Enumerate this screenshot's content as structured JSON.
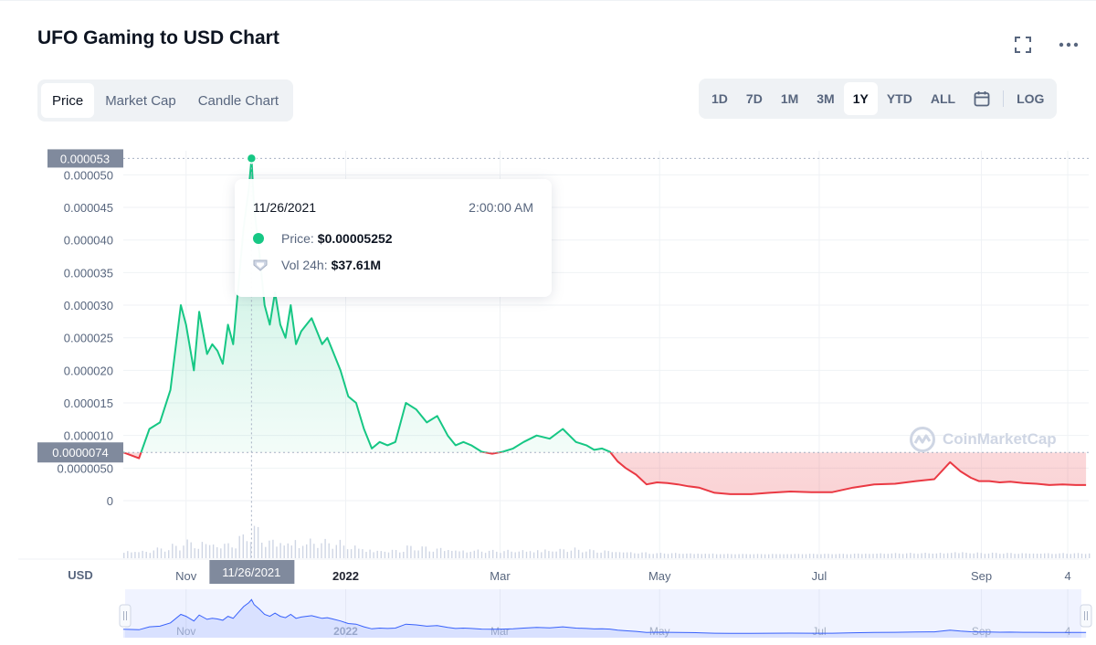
{
  "header": {
    "title": "UFO Gaming to USD Chart"
  },
  "tabs": [
    {
      "label": "Price",
      "active": true
    },
    {
      "label": "Market Cap",
      "active": false
    },
    {
      "label": "Candle Chart",
      "active": false
    }
  ],
  "ranges": [
    {
      "label": "1D",
      "active": false
    },
    {
      "label": "7D",
      "active": false
    },
    {
      "label": "1M",
      "active": false
    },
    {
      "label": "3M",
      "active": false
    },
    {
      "label": "1Y",
      "active": true
    },
    {
      "label": "YTD",
      "active": false
    },
    {
      "label": "ALL",
      "active": false
    }
  ],
  "log_label": "LOG",
  "icons": {
    "fullscreen": "fullscreen-icon",
    "more": "more-icon",
    "calendar": "calendar-icon"
  },
  "colors": {
    "up": "#16c784",
    "down": "#ea3943",
    "volume": "#cfd6e4",
    "navigator_line": "#3861fb"
  },
  "tooltip": {
    "date": "11/26/2021",
    "time": "2:00:00 AM",
    "price_label": "Price:",
    "price_value": "$0.00005252",
    "volume_label": "Vol 24h:",
    "volume_value": "$37.61M"
  },
  "watermark": "CoinMarketCap",
  "chart_data": {
    "type": "line",
    "currency_label": "USD",
    "y_tick_labels": [
      "0",
      "0.0000050",
      "0.000010",
      "0.000015",
      "0.000020",
      "0.000025",
      "0.000030",
      "0.000035",
      "0.000040",
      "0.000045",
      "0.000050"
    ],
    "y_ticks": [
      0,
      5e-06,
      1e-05,
      1.5e-05,
      2e-05,
      2.5e-05,
      3e-05,
      3.5e-05,
      4e-05,
      4.5e-05,
      5e-05
    ],
    "ylim": [
      0,
      5.3e-05
    ],
    "x_tick_labels": [
      "Nov",
      "2022",
      "Mar",
      "May",
      "Jul",
      "Sep",
      "4"
    ],
    "x_tick_dates": [
      "2021-11-01",
      "2022-01-01",
      "2022-03-01",
      "2022-05-01",
      "2022-07-01",
      "2022-09-01",
      "2022-10-04"
    ],
    "xlim": [
      "2021-10-08",
      "2022-10-12"
    ],
    "hover": {
      "date": "2021-11-26",
      "date_label": "11/26/2021",
      "price": 5.252e-05,
      "price_label": "0.000053"
    },
    "baseline": {
      "value": 7.4e-06,
      "label": "0.0000074"
    },
    "grid": true,
    "series": [
      {
        "x": [
          "2021-10-08",
          "2021-10-14",
          "2021-10-18",
          "2021-10-22",
          "2021-10-26",
          "2021-10-30",
          "2021-11-01",
          "2021-11-04",
          "2021-11-06",
          "2021-11-09",
          "2021-11-11",
          "2021-11-13",
          "2021-11-15",
          "2021-11-17",
          "2021-11-19",
          "2021-11-21",
          "2021-11-23",
          "2021-11-25",
          "2021-11-26",
          "2021-11-27",
          "2021-11-29",
          "2021-12-01",
          "2021-12-03",
          "2021-12-05",
          "2021-12-07",
          "2021-12-09",
          "2021-12-11",
          "2021-12-13",
          "2021-12-15",
          "2021-12-17",
          "2021-12-19",
          "2021-12-21",
          "2021-12-23",
          "2021-12-25",
          "2021-12-27",
          "2021-12-30",
          "2022-01-02",
          "2022-01-05",
          "2022-01-08",
          "2022-01-11",
          "2022-01-14",
          "2022-01-17",
          "2022-01-20",
          "2022-01-24",
          "2022-01-28",
          "2022-02-01",
          "2022-02-05",
          "2022-02-09",
          "2022-02-12",
          "2022-02-15",
          "2022-02-18",
          "2022-02-22",
          "2022-02-26",
          "2022-03-02",
          "2022-03-06",
          "2022-03-10",
          "2022-03-15",
          "2022-03-20",
          "2022-03-25",
          "2022-03-30",
          "2022-04-03",
          "2022-04-06",
          "2022-04-09",
          "2022-04-12",
          "2022-04-15",
          "2022-04-18",
          "2022-04-22",
          "2022-04-26",
          "2022-04-30",
          "2022-05-04",
          "2022-05-08",
          "2022-05-12",
          "2022-05-16",
          "2022-05-22",
          "2022-05-28",
          "2022-06-05",
          "2022-06-12",
          "2022-06-20",
          "2022-06-28",
          "2022-07-06",
          "2022-07-14",
          "2022-07-22",
          "2022-07-30",
          "2022-08-07",
          "2022-08-14",
          "2022-08-20",
          "2022-08-24",
          "2022-08-26",
          "2022-08-28",
          "2022-08-31",
          "2022-09-04",
          "2022-09-08",
          "2022-09-12",
          "2022-09-17",
          "2022-09-22",
          "2022-09-27",
          "2022-10-02",
          "2022-10-07",
          "2022-10-11"
        ],
        "values": [
          7.4e-06,
          6.5e-06,
          1.1e-05,
          1.2e-05,
          1.7e-05,
          3e-05,
          2.7e-05,
          2e-05,
          2.9e-05,
          2.25e-05,
          2.4e-05,
          2.3e-05,
          2.1e-05,
          2.7e-05,
          2.4e-05,
          3.3e-05,
          4.2e-05,
          4.8e-05,
          5.252e-05,
          4.5e-05,
          3.8e-05,
          3e-05,
          2.7e-05,
          3.2e-05,
          2.7e-05,
          2.5e-05,
          3e-05,
          2.4e-05,
          2.6e-05,
          2.7e-05,
          2.8e-05,
          2.6e-05,
          2.4e-05,
          2.5e-05,
          2.3e-05,
          2e-05,
          1.6e-05,
          1.5e-05,
          1.1e-05,
          8e-06,
          9e-06,
          8.5e-06,
          9e-06,
          1.5e-05,
          1.4e-05,
          1.2e-05,
          1.3e-05,
          1e-05,
          8.5e-06,
          9e-06,
          8.5e-06,
          7.5e-06,
          7.2e-06,
          7.5e-06,
          8e-06,
          9e-06,
          1e-05,
          9.5e-06,
          1.1e-05,
          9e-06,
          8.5e-06,
          7.8e-06,
          8e-06,
          7.5e-06,
          6e-06,
          5e-06,
          4e-06,
          2.5e-06,
          2.8e-06,
          2.7e-06,
          2.5e-06,
          2.2e-06,
          2e-06,
          1.2e-06,
          1e-06,
          1e-06,
          1.2e-06,
          1.4e-06,
          1.3e-06,
          1.3e-06,
          2e-06,
          2.5e-06,
          2.6e-06,
          3e-06,
          3.3e-06,
          5.9e-06,
          4.5e-06,
          4e-06,
          3.5e-06,
          3e-06,
          3e-06,
          2.8e-06,
          2.9e-06,
          2.7e-06,
          2.6e-06,
          2.4e-06,
          2.5e-06,
          2.4e-06,
          2.4e-06
        ]
      }
    ]
  }
}
